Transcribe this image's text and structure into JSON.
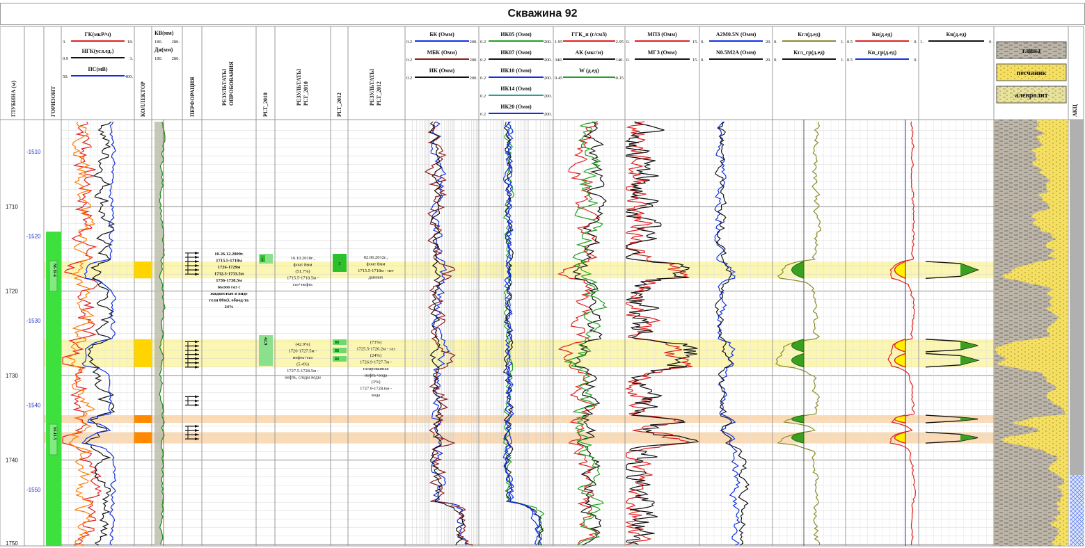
{
  "title": "Скважина 92",
  "columns": {
    "depth": "ГЛУБИНА (м)",
    "horizon": "ГОРИЗОНТ",
    "collector": "КОЛЛЕКТОР",
    "perforation": "ПЕРФОРАЦИЯ",
    "testing": "РЕЗУЛЬТАТЫ ОПРОБОВАНИЯ",
    "plt2010": "PLT_2010",
    "plt2010_results": "РЕЗУЛЬТАТЫ PLT_2010",
    "plt2012": "PLT_2012",
    "plt2012_results": "РЕЗУЛЬТАТЫ PLT_2012",
    "akc": "АКЦ"
  },
  "tracks": {
    "gk": {
      "name": "ГК(мкР/ч)",
      "min": "3.",
      "max": "18.",
      "color": "#e02020"
    },
    "ngk": {
      "name": "НГК(усл.ед.)",
      "min": "0.9",
      "max": "3.",
      "color": "#111111"
    },
    "ps": {
      "name": "ПС(мВ)",
      "min": "50.",
      "max": "400.",
      "color": "#1030e0"
    },
    "kv": {
      "name": "КВ(мм)",
      "min": "180.",
      "max": "280."
    },
    "dn": {
      "name": "Дн(мм)",
      "min": "180.",
      "max": "280."
    },
    "bk": {
      "name": "БК (Омм)",
      "min": "0.2",
      "max": "200.",
      "color": "#1030e0"
    },
    "mbk": {
      "name": "МБК (Омм)",
      "min": "0.2",
      "max": "200.",
      "color": "#8b1a1a"
    },
    "ik": {
      "name": "ИК (Омм)",
      "min": "0.2",
      "max": "200.",
      "color": "#111111"
    },
    "ik05": {
      "name": "ИК05 (Омм)",
      "min": "0.2",
      "max": "200.",
      "color": "#20a020"
    },
    "ik07": {
      "name": "ИК07 (Омм)",
      "min": "0.2",
      "max": "200.",
      "color": "#111111"
    },
    "ik10": {
      "name": "ИК10 (Омм)",
      "min": "0.2",
      "max": "200.",
      "color": "#1030e0"
    },
    "ik14": {
      "name": "ИК14 (Омм)",
      "min": "0.2",
      "max": "200.",
      "color": "#20a0a0"
    },
    "ik20": {
      "name": "ИК20 (Омм)",
      "min": "0.2",
      "max": "200.",
      "color": "#1030e0"
    },
    "ggk": {
      "name": "ГГК_п (г/см3)",
      "min": "1.95",
      "max": "2.95",
      "color": "#e02020"
    },
    "ak": {
      "name": "АК (мкс/м)",
      "min": "340.",
      "max": "140.",
      "color": "#111111"
    },
    "w": {
      "name": "W (д.ед)",
      "min": "0.45",
      "max": "-0.15",
      "color": "#20a020"
    },
    "mpz": {
      "name": "МПЗ (Омм)",
      "min": "0.",
      "max": "15.",
      "color": "#e02020"
    },
    "mgz": {
      "name": "МГЗ (Омм)",
      "min": "0.",
      "max": "15.",
      "color": "#111111"
    },
    "a2m": {
      "name": "A2M0.5N (Омм)",
      "min": "0.",
      "max": "20.",
      "color": "#1030e0"
    },
    "n05": {
      "name": "N0.5M2A (Омм)",
      "min": "0.",
      "max": "20.",
      "color": "#111111"
    },
    "kgl": {
      "name": "Кгл(д.ед)",
      "min": "0.",
      "max": "1.",
      "color": "#8a8a2a"
    },
    "kglgr": {
      "name": "Кгл_гр(д.ед)",
      "min": "0.",
      "max": "1.",
      "color": "#111111"
    },
    "kp": {
      "name": "Кп(д.ед)",
      "min": "0.5",
      "max": "0.",
      "color": "#e02020"
    },
    "kpgr": {
      "name": "Кп_гр(д.ед)",
      "min": "0.5",
      "max": "0.",
      "color": "#1030e0"
    },
    "kv2": {
      "name": "Кв(д.ед)",
      "min": "1.",
      "max": "0.",
      "color": "#111111"
    }
  },
  "lithology": {
    "clay": "глина",
    "sand": "песчаник",
    "silt": "алевролит"
  },
  "depth_ticks": [
    "1710",
    "1720",
    "1730",
    "1740"
  ],
  "depth_last": "1750",
  "abs_ticks": [
    "-1510",
    "-1520",
    "-1530",
    "-1540",
    "-1550"
  ],
  "horizons": [
    "M-II-4",
    "M-II-5"
  ],
  "testing_text": [
    "10-26.12.2009г.",
    "1715.5-1718м",
    "1726-1729м",
    "1732.5-1733.5м",
    "1736-1738.5м",
    "вызов газ с",
    "жидкостью в виде",
    "геля 80м3, обвод-ть",
    "24%"
  ],
  "plt2010_labels": [
    "1",
    "42.9"
  ],
  "plt2010_text1": [
    "16.10.2010г.,",
    "фонт 8мм",
    "(51.7%)",
    "1715.5-1718.5м -",
    "газ+нефть"
  ],
  "plt2010_text2": [
    "(42.9%)",
    "1726-1727.5м -",
    "нефть+газ",
    "(5.4%)",
    "1727.5-1728.5м -",
    "нефть, следы воды"
  ],
  "plt2012_label": "5",
  "plt2012_text1": [
    "02.06.2012г.,",
    "фонт 8мм",
    "1715.5-1718м - нет",
    "данных"
  ],
  "plt2012_text2": [
    "(73%)",
    "1725.5-1726.2м - газ",
    "(24%)",
    "1726.9-1727.7м -",
    "газированная",
    "нефть+вода",
    "(3%)",
    "1727.9-1728.6м -",
    "вода"
  ]
}
